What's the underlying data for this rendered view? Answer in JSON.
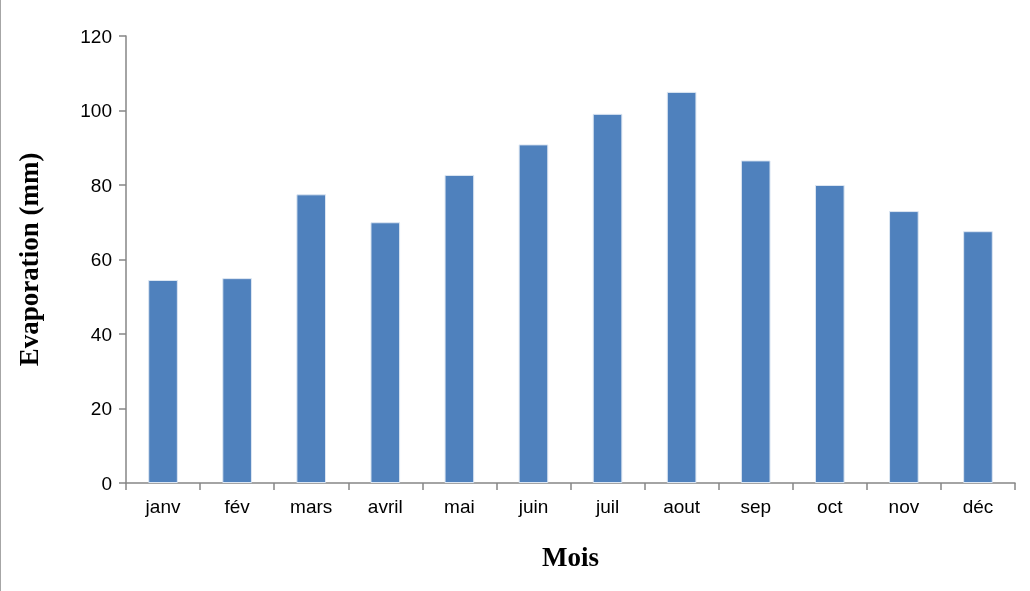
{
  "chart_data": {
    "type": "bar",
    "categories": [
      "janv",
      "fév",
      "mars",
      "avril",
      "mai",
      "juin",
      "juil",
      "aout",
      "sep",
      "oct",
      "nov",
      "déc"
    ],
    "values": [
      54.5,
      55,
      77.5,
      70,
      82.7,
      90.9,
      99.1,
      105,
      86.6,
      80,
      73,
      67.6
    ],
    "color": "#4f81bd",
    "xlabel": "Mois",
    "ylabel": "Evaporation (mm)",
    "ylim": [
      0,
      120
    ],
    "yticks": [
      0,
      20,
      40,
      60,
      80,
      100,
      120
    ],
    "grid": false
  }
}
